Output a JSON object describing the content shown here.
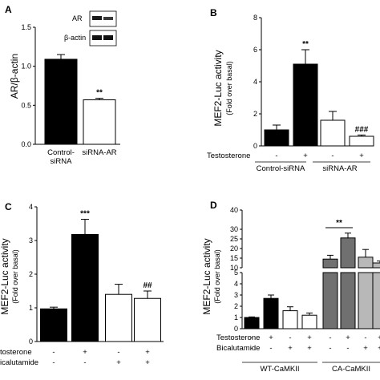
{
  "chart_data": [
    {
      "panel": "A",
      "type": "bar",
      "ylabel": "AR/β-actin",
      "ylim": [
        0,
        1.5
      ],
      "yticks": [
        "0.0",
        "0.5",
        "1.0",
        "1.5"
      ],
      "categories": [
        "Control-\nsiRNA",
        "siRNA-AR"
      ],
      "values": [
        1.09,
        0.57
      ],
      "errors": [
        0.06,
        0.02
      ],
      "fills": [
        "#000000",
        "#ffffff"
      ],
      "annotations": [
        "",
        "**"
      ],
      "blot_labels": [
        "AR",
        "β-actin"
      ]
    },
    {
      "panel": "B",
      "type": "bar",
      "ylabel": "MEF2-Luc activity",
      "ysub": "(Fold over basal)",
      "ylim": [
        0,
        8
      ],
      "yticks": [
        "0",
        "2",
        "4",
        "6",
        "8"
      ],
      "values": [
        1.0,
        5.1,
        1.6,
        0.6
      ],
      "errors": [
        0.3,
        0.9,
        0.55,
        0.08
      ],
      "fills": [
        "#000000",
        "#000000",
        "#ffffff",
        "#ffffff"
      ],
      "annotations": [
        "",
        "**",
        "",
        "###"
      ],
      "row_label": "Testosterone",
      "row_signs": [
        "-",
        "+",
        "-",
        "+"
      ],
      "groups": [
        "Control-siRNA",
        "siRNA-AR"
      ]
    },
    {
      "panel": "C",
      "type": "bar",
      "ylabel": "MEF2-Luc activity",
      "ysub": "(Fold over basal)",
      "ylim": [
        0,
        4
      ],
      "yticks": [
        "0",
        "1",
        "2",
        "3",
        "4"
      ],
      "values": [
        0.97,
        3.18,
        1.4,
        1.28
      ],
      "errors": [
        0.05,
        0.45,
        0.3,
        0.22
      ],
      "fills": [
        "#000000",
        "#000000",
        "#ffffff",
        "#ffffff"
      ],
      "annotations": [
        "",
        "***",
        "",
        "##"
      ],
      "rows": [
        {
          "label": "tosterone",
          "signs": [
            "-",
            "+",
            "-",
            "+"
          ]
        },
        {
          "label": "icalutamide",
          "signs": [
            "-",
            "-",
            "+",
            "+"
          ]
        }
      ]
    },
    {
      "panel": "D",
      "type": "bar",
      "ylabel": "MEF2-Luc activity",
      "ysub": "(Fold over basal)",
      "yticks_upper": [
        "10",
        "15",
        "20",
        "25",
        "30",
        "40"
      ],
      "yticks_lower": [
        "0",
        "1",
        "2",
        "3",
        "4",
        "5"
      ],
      "values": [
        1.0,
        2.7,
        1.6,
        1.2,
        14.5,
        25.5,
        15.5,
        12.5
      ],
      "errors": [
        0.05,
        0.3,
        0.35,
        0.2,
        2.0,
        2.5,
        4.0,
        1.0
      ],
      "fills": [
        "#000000",
        "#000000",
        "#ffffff",
        "#ffffff",
        "#707070",
        "#707070",
        "#b8b8b8",
        "#b8b8b8"
      ],
      "annotations": [
        "",
        "",
        "",
        "",
        "",
        "**",
        "",
        ""
      ],
      "rows": [
        {
          "label": "Testosterone",
          "signs": [
            "-",
            "+",
            "-",
            "+",
            "-",
            "+",
            "-",
            "+"
          ]
        },
        {
          "label": "Bicalutamide",
          "signs": [
            "-",
            "-",
            "+",
            "+",
            "-",
            "-",
            "+",
            "+"
          ]
        }
      ],
      "groups": [
        "WT-CaMKII",
        "CA-CaMKII"
      ]
    }
  ]
}
